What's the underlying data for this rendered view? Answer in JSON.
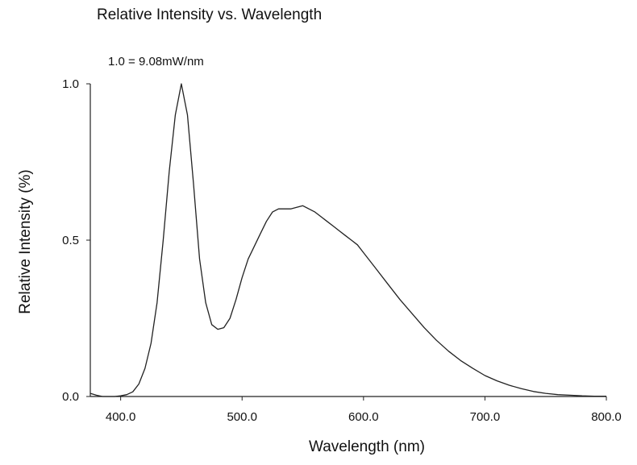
{
  "chart_data": {
    "type": "line",
    "title": "Relative Intensity vs. Wavelength",
    "annotation": "1.0 = 9.08mW/nm",
    "xlabel": "Wavelength (nm)",
    "ylabel": "Relative Intensity (%)",
    "xlim": [
      375,
      800
    ],
    "ylim": [
      0,
      1.0
    ],
    "xticks": [
      "400.0",
      "500.0",
      "600.0",
      "700.0",
      "800.0"
    ],
    "xtick_values": [
      400,
      500,
      600,
      700,
      800
    ],
    "yticks": [
      "0.0",
      "0.5",
      "1.0"
    ],
    "ytick_values": [
      0,
      0.5,
      1.0
    ],
    "grid": false,
    "series": [
      {
        "x": [
          375,
          380,
          385,
          390,
          395,
          400,
          405,
          410,
          415,
          420,
          425,
          430,
          435,
          440,
          445,
          450,
          455,
          460,
          465,
          470,
          475,
          480,
          485,
          490,
          495,
          500,
          505,
          510,
          515,
          520,
          525,
          530,
          535,
          540,
          545,
          550,
          555,
          560,
          565,
          570,
          575,
          580,
          585,
          590,
          595,
          600,
          610,
          620,
          630,
          640,
          650,
          660,
          670,
          680,
          690,
          700,
          710,
          720,
          730,
          740,
          750,
          760,
          770,
          780,
          790,
          800
        ],
        "y": [
          0.01,
          0.004,
          0.0,
          0.0,
          0.0,
          0.002,
          0.006,
          0.015,
          0.04,
          0.09,
          0.17,
          0.3,
          0.5,
          0.72,
          0.9,
          1.0,
          0.9,
          0.68,
          0.44,
          0.3,
          0.23,
          0.215,
          0.22,
          0.25,
          0.31,
          0.38,
          0.44,
          0.48,
          0.52,
          0.56,
          0.59,
          0.6,
          0.6,
          0.6,
          0.605,
          0.61,
          0.6,
          0.59,
          0.575,
          0.56,
          0.545,
          0.53,
          0.515,
          0.5,
          0.485,
          0.46,
          0.41,
          0.36,
          0.31,
          0.265,
          0.22,
          0.18,
          0.145,
          0.115,
          0.09,
          0.067,
          0.05,
          0.036,
          0.025,
          0.016,
          0.01,
          0.006,
          0.004,
          0.002,
          0.001,
          0.001
        ]
      }
    ],
    "line_color": "#222222"
  }
}
